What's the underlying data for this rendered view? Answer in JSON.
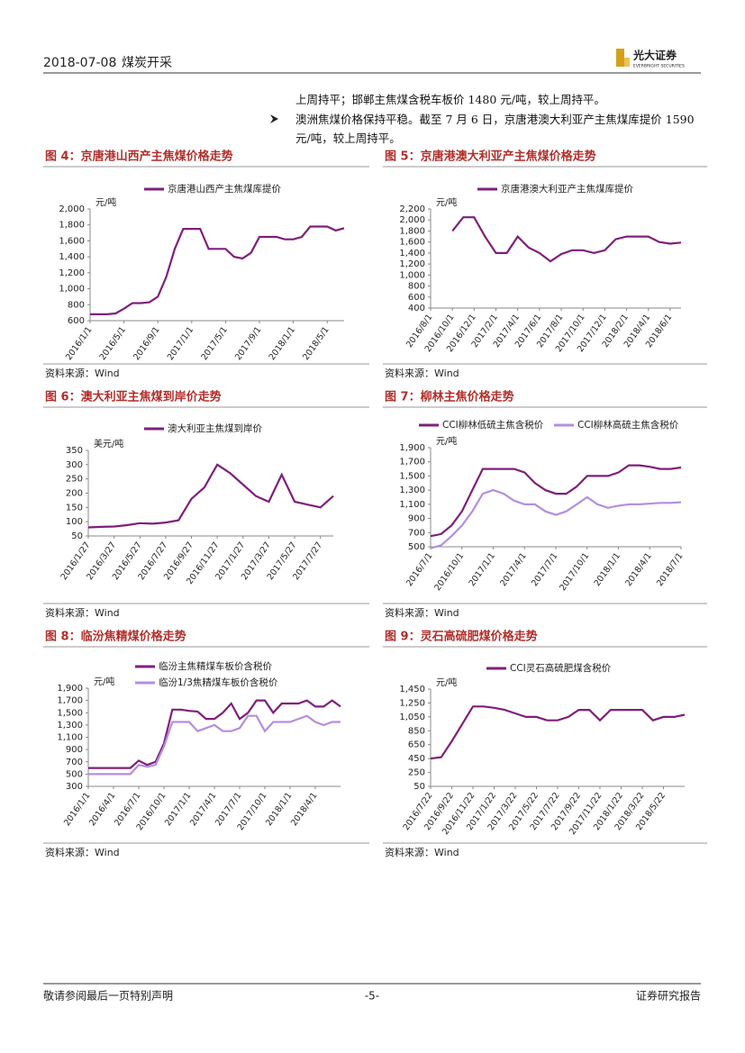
{
  "header": {
    "date": "2018-07-08",
    "sector": "煤炭开采",
    "brand": "光大证券",
    "brand_en": "EVERBRIGHT SECURITIES"
  },
  "body": {
    "paragraphs": [
      "上周持平；邯郸主焦煤含税车板价 1480 元/吨，较上周持平。",
      "澳洲焦煤价格保持平稳。截至 7 月 6 日，京唐港澳大利亚产主焦煤库提价 1590 元/吨，较上周持平。"
    ]
  },
  "footer": {
    "left": "敬请参阅最后一页特别声明",
    "center": "-5-",
    "right": "证券研究报告"
  },
  "chart_data": [
    {
      "type": "line",
      "title": "图 4：京唐港山西产主焦煤价格走势",
      "source": "资料来源：Wind",
      "unit": "元/吨",
      "categories": [
        "2016/1/1",
        null,
        null,
        null,
        "2016/5/1",
        null,
        null,
        null,
        "2016/9/1",
        null,
        null,
        null,
        "2017/1/1",
        null,
        null,
        null,
        "2017/5/1",
        null,
        null,
        null,
        "2017/9/1",
        null,
        null,
        null,
        "2018/1/1",
        null,
        null,
        null,
        "2018/5/1",
        null,
        null
      ],
      "series": [
        {
          "name": "京唐港山西产主焦煤库提价",
          "color": "#7f1f7a",
          "values": [
            680,
            680,
            680,
            690,
            750,
            820,
            820,
            830,
            900,
            1150,
            1500,
            1750,
            1750,
            1750,
            1500,
            1500,
            1500,
            1400,
            1380,
            1450,
            1650,
            1650,
            1650,
            1620,
            1620,
            1650,
            1780,
            1780,
            1780,
            1730,
            1760
          ]
        }
      ],
      "ylim": [
        600,
        2000
      ],
      "yticks": [
        600,
        800,
        {
          "value": 1000,
          "label": "1,000"
        },
        {
          "value": 1200,
          "label": "1,200"
        },
        {
          "value": 1400,
          "label": "1,400"
        },
        {
          "value": 1600,
          "label": "1,600"
        },
        {
          "value": 1800,
          "label": "1,800"
        },
        {
          "value": 2000,
          "label": "2,000"
        }
      ]
    },
    {
      "type": "line",
      "title": "图 5：京唐港澳大利亚产主焦煤价格走势",
      "source": "资料来源：Wind",
      "unit": "元/吨",
      "categories": [
        "2016/8/1",
        null,
        "2016/10/1",
        null,
        "2016/12/1",
        null,
        "2017/2/1",
        null,
        "2017/4/1",
        null,
        "2017/6/1",
        null,
        "2017/8/1",
        null,
        "2017/10/1",
        null,
        "2017/12/1",
        null,
        "2018/2/1",
        null,
        "2018/4/1",
        null,
        "2018/6/1",
        null
      ],
      "series": [
        {
          "name": "京唐港澳大利亚产主焦煤库提价",
          "color": "#7f1f7a",
          "values": [
            null,
            null,
            1800,
            2050,
            2050,
            1700,
            1400,
            1400,
            1700,
            1500,
            1400,
            1250,
            1380,
            1450,
            1450,
            1400,
            1450,
            1650,
            1700,
            1700,
            1700,
            1600,
            1570,
            1590
          ]
        }
      ],
      "ylim": [
        400,
        2200
      ],
      "yticks": [
        400,
        600,
        800,
        {
          "value": 1000,
          "label": "1,000"
        },
        {
          "value": 1200,
          "label": "1,200"
        },
        {
          "value": 1400,
          "label": "1,400"
        },
        {
          "value": 1600,
          "label": "1,600"
        },
        {
          "value": 1800,
          "label": "1,800"
        },
        {
          "value": 2000,
          "label": "2,000"
        },
        {
          "value": 2200,
          "label": "2,200"
        }
      ]
    },
    {
      "type": "line",
      "title": "图 6：澳大利亚主焦煤到岸价走势",
      "source": "资料来源：Wind",
      "unit": "美元/吨",
      "categories": [
        "2016/1/27",
        null,
        "2016/3/27",
        null,
        "2016/5/27",
        null,
        "2016/7/27",
        null,
        "2016/9/27",
        null,
        "2016/11/27",
        null,
        "2017/1/27",
        null,
        "2017/3/27",
        null,
        "2017/5/27",
        null,
        "2017/7/27",
        null
      ],
      "series": [
        {
          "name": "澳大利亚主焦煤到岸价",
          "color": "#7f1f7a",
          "values": [
            80,
            82,
            83,
            88,
            95,
            93,
            97,
            105,
            180,
            220,
            300,
            270,
            230,
            190,
            170,
            265,
            170,
            160,
            150,
            190
          ]
        }
      ],
      "ylim": [
        50,
        350
      ],
      "yticks": [
        50,
        100,
        150,
        200,
        250,
        300,
        350
      ]
    },
    {
      "type": "line",
      "title": "图 7：柳林主焦价格走势",
      "source": "资料来源：Wind",
      "unit": "元/吨",
      "categories": [
        "2016/7/1",
        null,
        null,
        "2016/10/1",
        null,
        null,
        "2017/1/1",
        null,
        null,
        "2017/4/1",
        null,
        null,
        "2017/7/1",
        null,
        null,
        "2017/10/1",
        null,
        null,
        "2018/1/1",
        null,
        null,
        "2018/4/1",
        null,
        null,
        "2018/7/1"
      ],
      "series": [
        {
          "name": "CCI柳林低硫主焦含税价",
          "color": "#7f1f7a",
          "values": [
            650,
            680,
            800,
            1000,
            1300,
            1600,
            1600,
            1600,
            1600,
            1550,
            1400,
            1300,
            1250,
            1250,
            1350,
            1500,
            1500,
            1500,
            1550,
            1650,
            1650,
            1630,
            1600,
            1600,
            1620
          ]
        },
        {
          "name": "CCI柳林高硫主焦含税价",
          "color": "#b48ee0",
          "values": [
            480,
            520,
            650,
            800,
            1000,
            1250,
            1300,
            1250,
            1150,
            1100,
            1100,
            1000,
            950,
            1000,
            1100,
            1200,
            1100,
            1050,
            1080,
            1100,
            1100,
            1110,
            1120,
            1120,
            1130
          ]
        }
      ],
      "ylim": [
        500,
        1900
      ],
      "yticks": [
        500,
        700,
        900,
        {
          "value": 1100,
          "label": "1,100"
        },
        {
          "value": 1300,
          "label": "1,300"
        },
        {
          "value": 1500,
          "label": "1,500"
        },
        {
          "value": 1700,
          "label": "1,700"
        },
        {
          "value": 1900,
          "label": "1,900"
        }
      ]
    },
    {
      "type": "line",
      "title": "图 8：临汾焦精煤价格走势",
      "source": "资料来源：Wind",
      "unit": "元/吨",
      "categories": [
        "2016/1/1",
        null,
        null,
        "2016/4/1",
        null,
        null,
        "2016/7/1",
        null,
        null,
        "2016/10/1",
        null,
        null,
        "2017/1/1",
        null,
        null,
        "2017/4/1",
        null,
        null,
        "2017/7/1",
        null,
        null,
        "2017/10/1",
        null,
        null,
        "2018/1/1",
        null,
        null,
        "2018/4/1",
        null,
        null,
        null
      ],
      "series": [
        {
          "name": "临汾主焦精煤车板价含税价",
          "color": "#7f1f7a",
          "values": [
            600,
            600,
            600,
            600,
            600,
            600,
            720,
            650,
            700,
            1000,
            1550,
            1550,
            1530,
            1520,
            1400,
            1400,
            1500,
            1650,
            1400,
            1500,
            1700,
            1700,
            1500,
            1650,
            1650,
            1650,
            1700,
            1600,
            1600,
            1700,
            1600
          ]
        },
        {
          "name": "临汾1/3焦精煤车板价含税价",
          "color": "#b48ee0",
          "values": [
            500,
            500,
            500,
            500,
            500,
            500,
            650,
            620,
            650,
            950,
            1350,
            1350,
            1350,
            1200,
            1250,
            1300,
            1200,
            1200,
            1250,
            1450,
            1450,
            1200,
            1350,
            1350,
            1350,
            1400,
            1450,
            1350,
            1300,
            1350,
            1350
          ]
        }
      ],
      "ylim": [
        300,
        1900
      ],
      "yticks": [
        300,
        500,
        700,
        900,
        {
          "value": 1100,
          "label": "1,100"
        },
        {
          "value": 1300,
          "label": "1,300"
        },
        {
          "value": 1500,
          "label": "1,500"
        },
        {
          "value": 1700,
          "label": "1,700"
        },
        {
          "value": 1900,
          "label": "1,900"
        }
      ]
    },
    {
      "type": "line",
      "title": "图 9：灵石高硫肥煤价格走势",
      "source": "资料来源：Wind",
      "unit": "元/吨",
      "categories": [
        "2016/7/22",
        null,
        "2016/9/22",
        null,
        "2016/11/22",
        null,
        "2017/1/22",
        null,
        "2017/3/22",
        null,
        "2017/5/22",
        null,
        "2017/7/22",
        null,
        "2017/9/22",
        null,
        "2017/11/22",
        null,
        "2018/1/22",
        null,
        "2018/3/22",
        null,
        "2018/5/22",
        null,
        null
      ],
      "series": [
        {
          "name": "CCI灵石高硫肥煤含税价",
          "color": "#7f1f7a",
          "values": [
            450,
            470,
            700,
            950,
            1200,
            1200,
            1180,
            1150,
            1100,
            1050,
            1050,
            1000,
            1000,
            1050,
            1150,
            1150,
            1000,
            1150,
            1150,
            1150,
            1150,
            1000,
            1050,
            1050,
            1080
          ]
        }
      ],
      "ylim": [
        50,
        1450
      ],
      "yticks": [
        50,
        250,
        450,
        650,
        850,
        {
          "value": 1050,
          "label": "1,050"
        },
        {
          "value": 1250,
          "label": "1,250"
        },
        {
          "value": 1450,
          "label": "1,450"
        }
      ]
    }
  ]
}
